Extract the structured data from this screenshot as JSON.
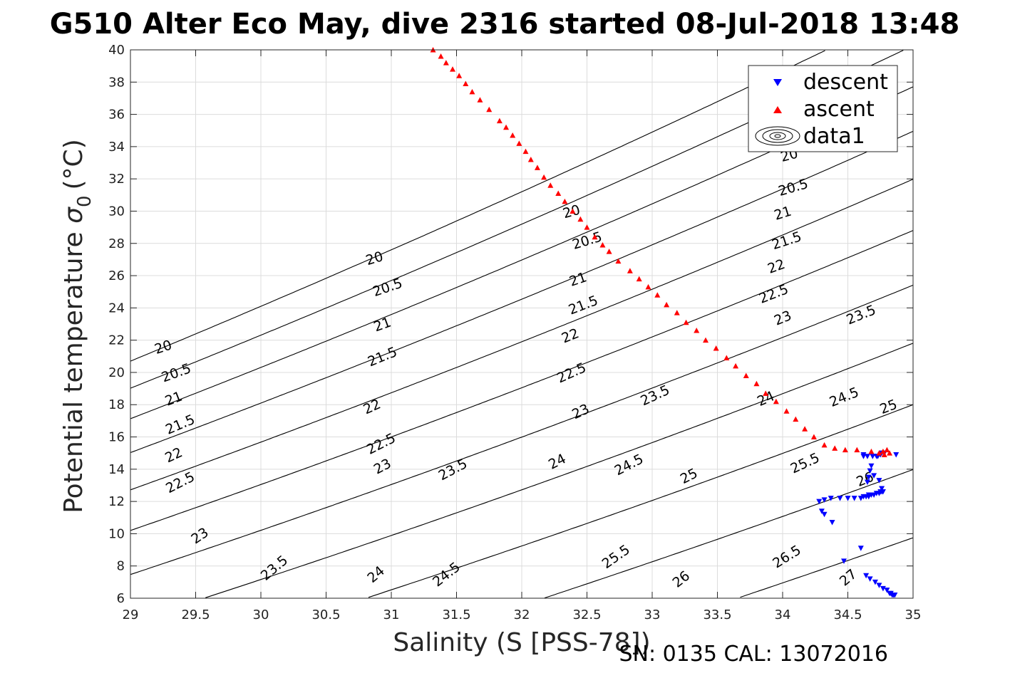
{
  "chart_data": {
    "type": "scatter",
    "title": "G510 Alter Eco May, dive 2316 started 08-Jul-2018 13:48",
    "xlabel": "Salinity (S [PSS-78])",
    "ylabel": "Potential temperature",
    "ylabel_symbol": "σ",
    "ylabel_subscript": "0",
    "ylabel_unit": "(°C)",
    "footer": "SN: 0135  CAL: 13072016",
    "xlim": [
      29,
      35
    ],
    "ylim": [
      6,
      40
    ],
    "x_ticks": [
      "29",
      "29.5",
      "30",
      "30.5",
      "31",
      "31.5",
      "32",
      "32.5",
      "33",
      "33.5",
      "34",
      "34.5",
      "35"
    ],
    "y_ticks": [
      "6",
      "8",
      "10",
      "12",
      "14",
      "16",
      "18",
      "20",
      "22",
      "24",
      "26",
      "28",
      "30",
      "32",
      "34",
      "36",
      "38",
      "40"
    ],
    "grid": true,
    "legend_position": "top-right",
    "legend": [
      "descent",
      "ascent",
      "data1"
    ],
    "colors": {
      "descent": "#0000ff",
      "ascent": "#ff0000",
      "contour": "#000000",
      "grid": "#dcdcdc"
    },
    "series": [
      {
        "name": "descent",
        "marker": "triangle-down",
        "x": [
          34.28,
          34.32,
          34.37,
          34.44,
          34.5,
          34.55,
          34.6,
          34.62,
          34.64,
          34.66,
          34.66,
          34.68,
          34.7,
          34.72,
          34.74,
          34.75,
          34.76,
          34.77,
          34.76,
          34.74,
          34.7,
          34.67,
          34.66,
          34.65,
          34.68,
          34.72,
          34.75,
          34.78,
          34.62,
          34.65,
          34.69,
          34.73,
          34.76,
          34.62,
          34.87,
          34.3,
          34.32,
          34.38,
          34.47,
          34.6,
          34.64,
          34.67,
          34.71,
          34.74,
          34.77,
          34.8,
          34.82,
          34.83,
          34.84,
          34.85,
          34.86
        ],
        "y": [
          12.0,
          12.1,
          12.2,
          12.2,
          12.2,
          12.2,
          12.2,
          12.3,
          12.3,
          12.3,
          12.4,
          12.4,
          12.4,
          12.5,
          12.5,
          12.6,
          12.6,
          12.6,
          12.8,
          13.3,
          13.6,
          13.9,
          13.5,
          13.2,
          14.2,
          14.8,
          14.9,
          15.0,
          14.8,
          14.8,
          14.8,
          14.8,
          15.0,
          14.9,
          14.9,
          11.4,
          11.2,
          10.7,
          8.3,
          9.1,
          7.4,
          7.2,
          7.0,
          6.8,
          6.6,
          6.5,
          6.3,
          6.3,
          6.2,
          6.2,
          6.2
        ],
        "color": "#0000ff"
      },
      {
        "name": "ascent",
        "marker": "triangle-up",
        "x": [
          31.32,
          31.38,
          31.42,
          31.47,
          31.52,
          31.57,
          31.62,
          31.68,
          31.75,
          31.83,
          31.88,
          31.93,
          31.98,
          32.03,
          32.07,
          32.12,
          32.17,
          32.22,
          32.28,
          32.33,
          32.39,
          32.45,
          32.5,
          32.56,
          32.62,
          32.67,
          32.74,
          32.83,
          32.9,
          32.97,
          33.04,
          33.11,
          33.19,
          33.26,
          33.34,
          33.41,
          33.49,
          33.57,
          33.64,
          33.72,
          33.8,
          33.87,
          33.95,
          34.03,
          34.1,
          34.17,
          34.24,
          34.32,
          34.4,
          34.48,
          34.57,
          34.68,
          34.74,
          34.77,
          34.8,
          34.82,
          34.78
        ],
        "y": [
          40.0,
          39.6,
          39.2,
          38.8,
          38.4,
          37.9,
          37.4,
          36.9,
          36.3,
          35.6,
          35.2,
          34.7,
          34.2,
          33.7,
          33.2,
          32.7,
          32.1,
          31.6,
          31.1,
          30.6,
          30.0,
          29.5,
          29.0,
          28.4,
          27.9,
          27.5,
          26.9,
          26.3,
          25.8,
          25.3,
          24.8,
          24.2,
          23.7,
          23.1,
          22.6,
          22.0,
          21.5,
          20.9,
          20.4,
          19.8,
          19.3,
          18.7,
          18.2,
          17.6,
          17.1,
          16.5,
          16.0,
          15.5,
          15.3,
          15.2,
          15.2,
          15.1,
          15.0,
          15.1,
          15.2,
          15.0,
          14.9
        ],
        "color": "#ff0000"
      },
      {
        "name": "data1",
        "type": "contour",
        "levels": [
          20,
          20.5,
          21,
          21.5,
          22,
          22.5,
          23,
          23.5,
          24,
          24.5,
          25,
          25.5,
          26,
          26.5,
          27
        ],
        "labels": [
          {
            "text": "20",
            "s": 29.25,
            "t": 21.6,
            "angle": -18
          },
          {
            "text": "20.5",
            "s": 29.35,
            "t": 20.0,
            "angle": -20
          },
          {
            "text": "21",
            "s": 29.33,
            "t": 18.4,
            "angle": -21
          },
          {
            "text": "21.5",
            "s": 29.38,
            "t": 16.8,
            "angle": -23
          },
          {
            "text": "22",
            "s": 29.33,
            "t": 14.9,
            "angle": -25
          },
          {
            "text": "22.5",
            "s": 29.38,
            "t": 13.2,
            "angle": -27
          },
          {
            "text": "23",
            "s": 29.53,
            "t": 9.9,
            "angle": -34
          },
          {
            "text": "23.5",
            "s": 30.1,
            "t": 7.9,
            "angle": -40
          },
          {
            "text": "24",
            "s": 30.88,
            "t": 7.5,
            "angle": -40
          },
          {
            "text": "24.5",
            "s": 31.42,
            "t": 7.5,
            "angle": -38
          },
          {
            "text": "25.5",
            "s": 32.72,
            "t": 8.6,
            "angle": -35
          },
          {
            "text": "26",
            "s": 33.22,
            "t": 7.2,
            "angle": -38
          },
          {
            "text": "26.5",
            "s": 34.03,
            "t": 8.6,
            "angle": -32
          },
          {
            "text": "27",
            "s": 34.5,
            "t": 7.3,
            "angle": -40
          },
          {
            "text": "20",
            "s": 30.87,
            "t": 27.1,
            "angle": -17
          },
          {
            "text": "20.5",
            "s": 30.97,
            "t": 25.3,
            "angle": -19
          },
          {
            "text": "21",
            "s": 30.93,
            "t": 23.0,
            "angle": -20
          },
          {
            "text": "21.5",
            "s": 30.93,
            "t": 21.0,
            "angle": -22
          },
          {
            "text": "22",
            "s": 30.85,
            "t": 17.9,
            "angle": -24
          },
          {
            "text": "22.5",
            "s": 30.92,
            "t": 15.6,
            "angle": -27
          },
          {
            "text": "23",
            "s": 30.93,
            "t": 14.2,
            "angle": -28
          },
          {
            "text": "23.5",
            "s": 31.47,
            "t": 14.0,
            "angle": -28
          },
          {
            "text": "24",
            "s": 32.27,
            "t": 14.5,
            "angle": -27
          },
          {
            "text": "24.5",
            "s": 32.82,
            "t": 14.3,
            "angle": -27
          },
          {
            "text": "25",
            "s": 33.28,
            "t": 13.6,
            "angle": -27
          },
          {
            "text": "25.5",
            "s": 34.17,
            "t": 14.4,
            "angle": -25
          },
          {
            "text": "26",
            "s": 34.63,
            "t": 13.4,
            "angle": -22
          },
          {
            "text": "20",
            "s": 32.38,
            "t": 30.0,
            "angle": -16
          },
          {
            "text": "20.5",
            "s": 32.5,
            "t": 28.2,
            "angle": -17
          },
          {
            "text": "21",
            "s": 32.43,
            "t": 25.8,
            "angle": -19
          },
          {
            "text": "21.5",
            "s": 32.47,
            "t": 24.2,
            "angle": -21
          },
          {
            "text": "22",
            "s": 32.37,
            "t": 22.3,
            "angle": -22
          },
          {
            "text": "22.5",
            "s": 32.38,
            "t": 20.0,
            "angle": -24
          },
          {
            "text": "23",
            "s": 32.45,
            "t": 17.6,
            "angle": -25
          },
          {
            "text": "23.5",
            "s": 33.02,
            "t": 18.6,
            "angle": -25
          },
          {
            "text": "24",
            "s": 33.87,
            "t": 18.4,
            "angle": -24
          },
          {
            "text": "24.5",
            "s": 34.47,
            "t": 18.5,
            "angle": -22
          },
          {
            "text": "25",
            "s": 34.81,
            "t": 17.9,
            "angle": -21
          },
          {
            "text": "20",
            "s": 34.05,
            "t": 33.5,
            "angle": -15
          },
          {
            "text": "20.5",
            "s": 34.08,
            "t": 31.5,
            "angle": -16
          },
          {
            "text": "21",
            "s": 34.0,
            "t": 29.9,
            "angle": -17
          },
          {
            "text": "21.5",
            "s": 34.03,
            "t": 28.2,
            "angle": -18
          },
          {
            "text": "22",
            "s": 33.95,
            "t": 26.6,
            "angle": -20
          },
          {
            "text": "22.5",
            "s": 33.93,
            "t": 24.9,
            "angle": -21
          },
          {
            "text": "23",
            "s": 34.0,
            "t": 23.4,
            "angle": -22
          },
          {
            "text": "23.5",
            "s": 34.6,
            "t": 23.6,
            "angle": -22
          }
        ]
      }
    ]
  }
}
